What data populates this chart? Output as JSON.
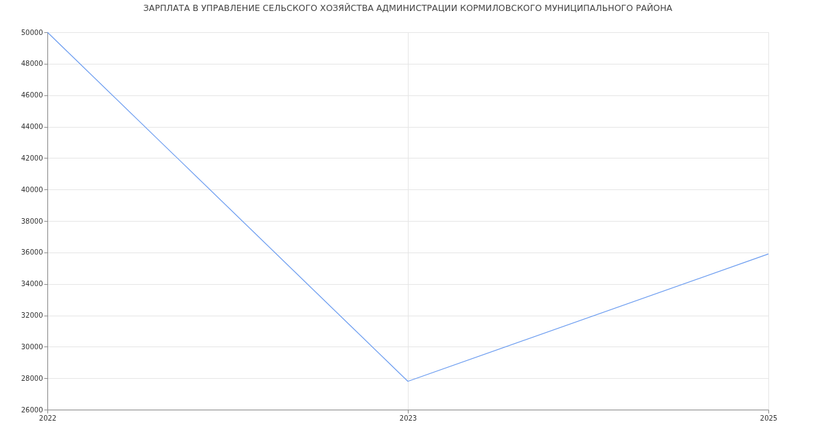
{
  "chart_data": {
    "type": "line",
    "title": "ЗАРПЛАТА В УПРАВЛЕНИЕ СЕЛЬСКОГО ХОЗЯЙСТВА АДМИНИСТРАЦИИ КОРМИЛОВСКОГО МУНИЦИПАЛЬНОГО РАЙОНА",
    "categories": [
      "2022",
      "2023",
      "2025"
    ],
    "series": [
      {
        "color": "#6b9cf0",
        "values": [
          50000,
          27800,
          35900
        ]
      }
    ],
    "ylim": [
      26000,
      50000
    ],
    "yticks": [
      26000,
      28000,
      30000,
      32000,
      34000,
      36000,
      38000,
      40000,
      42000,
      44000,
      46000,
      48000,
      50000
    ],
    "grid": true,
    "marker": "none"
  }
}
